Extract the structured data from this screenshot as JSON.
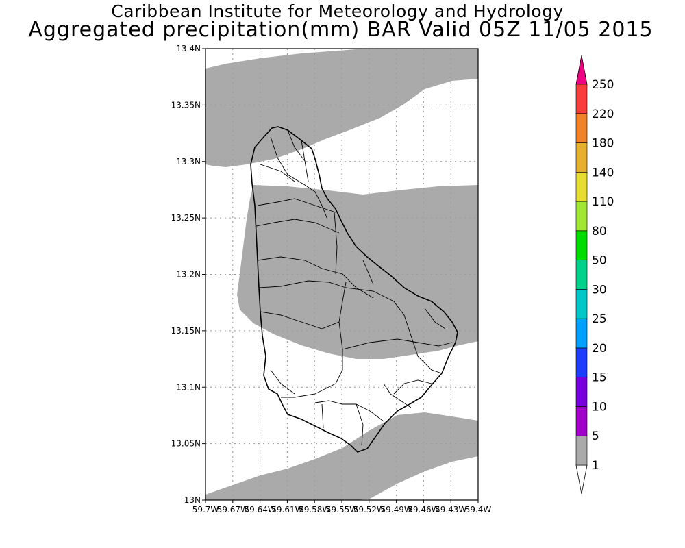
{
  "title": {
    "line1": "Caribbean Institute for Meteorology and Hydrology",
    "line2": "Aggregated precipitation(mm) BAR Valid 05Z 11/05 2015"
  },
  "map": {
    "lat_range": [
      13.0,
      13.4
    ],
    "lon_range": [
      59.7,
      59.4
    ],
    "lat_ticks": [
      "13N",
      "13.05N",
      "13.1N",
      "13.15N",
      "13.2N",
      "13.25N",
      "13.3N",
      "13.35N",
      "13.4N"
    ],
    "lon_ticks": [
      "59.7W",
      "59.67W",
      "59.64W",
      "59.61W",
      "59.58W",
      "59.55W",
      "59.52W",
      "59.49W",
      "59.46W",
      "59.43W",
      "59.4W"
    ],
    "grid": true,
    "shaded_class": "1-5 mm",
    "shade_color": "#aaaaaa"
  },
  "colorbar": {
    "levels": [
      "1",
      "5",
      "10",
      "15",
      "20",
      "25",
      "30",
      "50",
      "80",
      "110",
      "140",
      "180",
      "220",
      "250"
    ],
    "colors": [
      "#ffffff",
      "#aaaaaa",
      "#a000c8",
      "#7800dc",
      "#1e3cff",
      "#00a0ff",
      "#00c8c8",
      "#00d28c",
      "#00dc00",
      "#a0e632",
      "#e6dc32",
      "#e6af2d",
      "#f08228",
      "#fa3c3c",
      "#f00082"
    ]
  }
}
